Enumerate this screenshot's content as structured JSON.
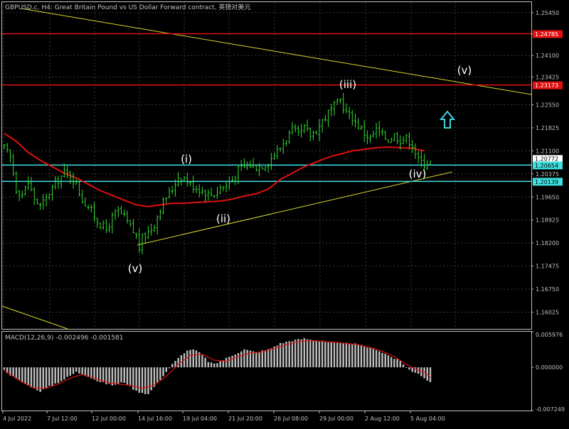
{
  "header": {
    "title": "GBPUSD.c, H4:  Great Britain Pound vs US Dollar Forward contract, 英镑对美元"
  },
  "colors": {
    "background": "#000000",
    "frame": "#c0c0c0",
    "grid": "#3a3a3a",
    "text": "#c0c0c0",
    "candle": "#33dd33",
    "ma": "#e01010",
    "resistance": "#e01010",
    "support": "#40e0e0",
    "trendline": "#d8d830",
    "macd_hist": "#c0c0c0",
    "macd_signal": "#e01010",
    "arrow": "#40d0e0",
    "label_bg_red": "#e01010",
    "label_bg_cyan": "#40e0e0"
  },
  "main_axis": {
    "ticks": [
      "1.25450",
      "1.24785",
      "1.24100",
      "1.23425",
      "1.22550",
      "1.21825",
      "1.21100",
      "1.20375",
      "1.19650",
      "1.18925",
      "1.18200",
      "1.17475",
      "1.16750",
      "1.16025"
    ],
    "range": [
      1.155,
      1.2578
    ]
  },
  "price_levels": [
    {
      "label": "1.24785",
      "value": 1.24785,
      "kind": "resistance"
    },
    {
      "label": "1.23173",
      "value": 1.23173,
      "kind": "resistance"
    },
    {
      "label": "1.20654",
      "value": 1.20654,
      "kind": "support",
      "secondary_label": "1.20772"
    },
    {
      "label": "1.20139",
      "value": 1.20139,
      "kind": "support"
    }
  ],
  "wave_labels": [
    "(v)",
    "(i)",
    "(ii)",
    "(iii)",
    "(iv)",
    "(v)"
  ],
  "macd": {
    "title": "MACD(12,26,9) -0.002496 -0.001581",
    "ticks": [
      "0.005976",
      "0.000000",
      "-0.007249"
    ],
    "range": [
      -0.007249,
      0.005976
    ]
  },
  "time_axis": [
    "4 Jul 2022",
    "7 Jul 12:00",
    "12 Jul 00:00",
    "14 Jul 16:00",
    "19 Jul 04:00",
    "21 Jul 20:00",
    "26 Jul 08:00",
    "29 Jul 00:00",
    "2 Aug 12:00",
    "5 Aug 04:00"
  ],
  "chart_data": {
    "type": "candlestick",
    "price_anchors": [
      [
        0,
        1.212
      ],
      [
        2,
        1.209
      ],
      [
        4,
        1.199
      ],
      [
        6,
        1.1975
      ],
      [
        8,
        1.201
      ],
      [
        10,
        1.196
      ],
      [
        12,
        1.1935
      ],
      [
        14,
        1.196
      ],
      [
        16,
        1.1995
      ],
      [
        18,
        1.202
      ],
      [
        20,
        1.204
      ],
      [
        22,
        1.2035
      ],
      [
        24,
        1.2005
      ],
      [
        26,
        1.1955
      ],
      [
        28,
        1.1935
      ],
      [
        30,
        1.1905
      ],
      [
        32,
        1.188
      ],
      [
        34,
        1.186
      ],
      [
        36,
        1.19
      ],
      [
        38,
        1.192
      ],
      [
        40,
        1.19
      ],
      [
        42,
        1.187
      ],
      [
        44,
        1.184
      ],
      [
        45,
        1.1805
      ],
      [
        46,
        1.1835
      ],
      [
        48,
        1.1855
      ],
      [
        50,
        1.188
      ],
      [
        52,
        1.193
      ],
      [
        54,
        1.1965
      ],
      [
        56,
        1.199
      ],
      [
        58,
        1.203
      ],
      [
        60,
        1.2025
      ],
      [
        62,
        1.2005
      ],
      [
        64,
        1.1995
      ],
      [
        66,
        1.1985
      ],
      [
        68,
        1.1975
      ],
      [
        70,
        1.1975
      ],
      [
        72,
        1.1995
      ],
      [
        74,
        1.2
      ],
      [
        76,
        1.202
      ],
      [
        78,
        1.205
      ],
      [
        80,
        1.206
      ],
      [
        82,
        1.2065
      ],
      [
        84,
        1.206
      ],
      [
        86,
        1.2065
      ],
      [
        88,
        1.2075
      ],
      [
        90,
        1.21
      ],
      [
        92,
        1.212
      ],
      [
        94,
        1.215
      ],
      [
        96,
        1.2175
      ],
      [
        98,
        1.216
      ],
      [
        100,
        1.218
      ],
      [
        102,
        1.216
      ],
      [
        104,
        1.2175
      ],
      [
        106,
        1.2205
      ],
      [
        108,
        1.223
      ],
      [
        110,
        1.225
      ],
      [
        112,
        1.227
      ],
      [
        114,
        1.223
      ],
      [
        116,
        1.2215
      ],
      [
        118,
        1.219
      ],
      [
        120,
        1.2165
      ],
      [
        122,
        1.215
      ],
      [
        124,
        1.2175
      ],
      [
        126,
        1.216
      ],
      [
        128,
        1.2145
      ],
      [
        130,
        1.216
      ],
      [
        132,
        1.2145
      ],
      [
        134,
        1.215
      ],
      [
        136,
        1.213
      ],
      [
        138,
        1.208
      ],
      [
        140,
        1.207
      ],
      [
        142,
        1.2075
      ]
    ],
    "ma_anchors": [
      [
        0,
        1.2165
      ],
      [
        4,
        1.214
      ],
      [
        8,
        1.2105
      ],
      [
        12,
        1.208
      ],
      [
        16,
        1.206
      ],
      [
        20,
        1.204
      ],
      [
        24,
        1.2025
      ],
      [
        28,
        1.2005
      ],
      [
        32,
        1.1985
      ],
      [
        36,
        1.197
      ],
      [
        40,
        1.1955
      ],
      [
        44,
        1.194
      ],
      [
        48,
        1.1935
      ],
      [
        52,
        1.194
      ],
      [
        56,
        1.1945
      ],
      [
        60,
        1.1945
      ],
      [
        64,
        1.1948
      ],
      [
        68,
        1.195
      ],
      [
        72,
        1.1952
      ],
      [
        76,
        1.1958
      ],
      [
        80,
        1.1968
      ],
      [
        84,
        1.1975
      ],
      [
        88,
        1.199
      ],
      [
        92,
        1.202
      ],
      [
        96,
        1.204
      ],
      [
        100,
        1.206
      ],
      [
        104,
        1.2075
      ],
      [
        108,
        1.209
      ],
      [
        112,
        1.21
      ],
      [
        116,
        1.211
      ],
      [
        120,
        1.2115
      ],
      [
        124,
        1.212
      ],
      [
        128,
        1.2122
      ],
      [
        132,
        1.212
      ],
      [
        136,
        1.2118
      ],
      [
        140,
        1.211
      ]
    ],
    "macd_hist_anchors": [
      [
        0,
        -0.0005
      ],
      [
        4,
        -0.002
      ],
      [
        8,
        -0.003
      ],
      [
        12,
        -0.004
      ],
      [
        16,
        -0.003
      ],
      [
        20,
        -0.002
      ],
      [
        24,
        -0.0008
      ],
      [
        28,
        -0.0015
      ],
      [
        32,
        -0.0025
      ],
      [
        36,
        -0.003
      ],
      [
        40,
        -0.0025
      ],
      [
        44,
        -0.004
      ],
      [
        48,
        -0.0045
      ],
      [
        52,
        -0.002
      ],
      [
        56,
        0.0005
      ],
      [
        58,
        0.0015
      ],
      [
        60,
        0.0025
      ],
      [
        62,
        0.003
      ],
      [
        64,
        0.0028
      ],
      [
        66,
        0.002
      ],
      [
        68,
        0.001
      ],
      [
        70,
        0.0005
      ],
      [
        72,
        0.001
      ],
      [
        76,
        0.002
      ],
      [
        80,
        0.003
      ],
      [
        84,
        0.0025
      ],
      [
        88,
        0.003
      ],
      [
        92,
        0.004
      ],
      [
        96,
        0.0045
      ],
      [
        100,
        0.0048
      ],
      [
        104,
        0.0045
      ],
      [
        108,
        0.0042
      ],
      [
        112,
        0.004
      ],
      [
        116,
        0.004
      ],
      [
        120,
        0.0035
      ],
      [
        124,
        0.003
      ],
      [
        128,
        0.002
      ],
      [
        132,
        0.001
      ],
      [
        134,
        0.0
      ],
      [
        136,
        -0.0008
      ],
      [
        138,
        -0.001
      ],
      [
        140,
        -0.0018
      ],
      [
        142,
        -0.0025
      ]
    ],
    "macd_signal_anchors": [
      [
        0,
        -0.0005
      ],
      [
        6,
        -0.0025
      ],
      [
        10,
        -0.0035
      ],
      [
        14,
        -0.0035
      ],
      [
        18,
        -0.0028
      ],
      [
        22,
        -0.0018
      ],
      [
        26,
        -0.0012
      ],
      [
        30,
        -0.0018
      ],
      [
        34,
        -0.0025
      ],
      [
        38,
        -0.0028
      ],
      [
        42,
        -0.003
      ],
      [
        46,
        -0.0035
      ],
      [
        50,
        -0.003
      ],
      [
        54,
        -0.0015
      ],
      [
        58,
        0.0005
      ],
      [
        62,
        0.002
      ],
      [
        66,
        0.0022
      ],
      [
        70,
        0.0012
      ],
      [
        74,
        0.001
      ],
      [
        78,
        0.0018
      ],
      [
        82,
        0.0024
      ],
      [
        86,
        0.0026
      ],
      [
        90,
        0.0032
      ],
      [
        94,
        0.0038
      ],
      [
        98,
        0.0043
      ],
      [
        102,
        0.0045
      ],
      [
        106,
        0.0044
      ],
      [
        110,
        0.0042
      ],
      [
        114,
        0.004
      ],
      [
        118,
        0.0038
      ],
      [
        122,
        0.0033
      ],
      [
        126,
        0.0027
      ],
      [
        130,
        0.0018
      ],
      [
        134,
        0.0005
      ],
      [
        138,
        -0.0005
      ],
      [
        140,
        -0.0008
      ],
      [
        142,
        -0.0016
      ]
    ]
  }
}
